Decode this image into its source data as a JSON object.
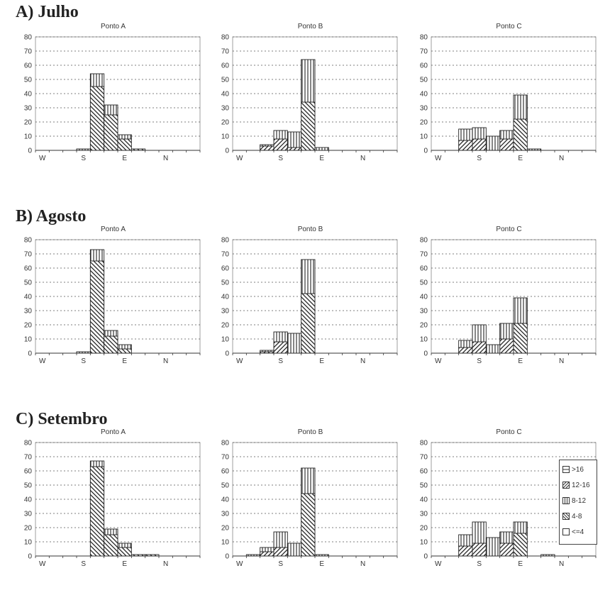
{
  "sections": [
    {
      "label": "A) Julho"
    },
    {
      "label": "B) Agosto"
    },
    {
      "label": "C) Setembro"
    }
  ],
  "legend": [
    ">16",
    "12-16",
    "8-12",
    "4-8",
    "<=4"
  ],
  "chart_data": [
    {
      "type": "bar",
      "stacked": true,
      "section": "A) Julho",
      "title": "Ponto A",
      "categories": [
        "1",
        "2",
        "3",
        "4",
        "5",
        "6",
        "7",
        "8",
        "9",
        "10",
        "11",
        "12"
      ],
      "x_ticks": [
        "W",
        "S",
        "E",
        "N"
      ],
      "ylim": [
        0,
        80
      ],
      "yticks": [
        0,
        10,
        20,
        30,
        40,
        50,
        60,
        70,
        80
      ],
      "series": [
        {
          "name": "4-8",
          "values": [
            0,
            0,
            0,
            0,
            45,
            25,
            8,
            1,
            0,
            0,
            0,
            0
          ]
        },
        {
          "name": "8-12",
          "values": [
            0,
            0,
            0,
            1,
            9,
            7,
            3,
            0,
            0,
            0,
            0,
            0
          ]
        }
      ]
    },
    {
      "type": "bar",
      "stacked": true,
      "section": "A) Julho",
      "title": "Ponto B",
      "categories": [
        "1",
        "2",
        "3",
        "4",
        "5",
        "6",
        "7",
        "8",
        "9",
        "10",
        "11",
        "12"
      ],
      "x_ticks": [
        "W",
        "S",
        "E",
        "N"
      ],
      "ylim": [
        0,
        80
      ],
      "yticks": [
        0,
        10,
        20,
        30,
        40,
        50,
        60,
        70,
        80
      ],
      "series": [
        {
          "name": "12-16",
          "values": [
            0,
            0,
            3,
            8,
            2,
            0,
            0,
            0,
            0,
            0,
            0,
            0
          ]
        },
        {
          "name": "4-8",
          "values": [
            0,
            0,
            0,
            0,
            0,
            34,
            0,
            0,
            0,
            0,
            0,
            0
          ]
        },
        {
          "name": "8-12",
          "values": [
            0,
            0,
            1,
            6,
            11,
            30,
            2,
            0,
            0,
            0,
            0,
            0
          ]
        }
      ]
    },
    {
      "type": "bar",
      "stacked": true,
      "section": "A) Julho",
      "title": "Ponto C",
      "categories": [
        "1",
        "2",
        "3",
        "4",
        "5",
        "6",
        "7",
        "8",
        "9",
        "10",
        "11",
        "12"
      ],
      "x_ticks": [
        "W",
        "S",
        "E",
        "N"
      ],
      "ylim": [
        0,
        80
      ],
      "yticks": [
        0,
        10,
        20,
        30,
        40,
        50,
        60,
        70,
        80
      ],
      "series": [
        {
          "name": "12-16",
          "values": [
            0,
            0,
            7,
            8,
            0,
            8,
            0,
            0,
            0,
            0,
            0,
            0
          ]
        },
        {
          "name": "4-8",
          "values": [
            0,
            0,
            0,
            0,
            0,
            0,
            22,
            0,
            0,
            0,
            0,
            0
          ]
        },
        {
          "name": "8-12",
          "values": [
            0,
            0,
            8,
            8,
            10,
            6,
            17,
            1,
            0,
            0,
            0,
            0
          ]
        }
      ]
    },
    {
      "type": "bar",
      "stacked": true,
      "section": "B) Agosto",
      "title": "Ponto A",
      "categories": [
        "1",
        "2",
        "3",
        "4",
        "5",
        "6",
        "7",
        "8",
        "9",
        "10",
        "11",
        "12"
      ],
      "x_ticks": [
        "W",
        "S",
        "E",
        "N"
      ],
      "ylim": [
        0,
        80
      ],
      "yticks": [
        0,
        10,
        20,
        30,
        40,
        50,
        60,
        70,
        80
      ],
      "series": [
        {
          "name": "4-8",
          "values": [
            0,
            0,
            0,
            0,
            65,
            12,
            3,
            0,
            0,
            0,
            0,
            0
          ]
        },
        {
          "name": "8-12",
          "values": [
            0,
            0,
            0,
            1,
            8,
            4,
            3,
            0,
            0,
            0,
            0,
            0
          ]
        }
      ]
    },
    {
      "type": "bar",
      "stacked": true,
      "section": "B) Agosto",
      "title": "Ponto B",
      "categories": [
        "1",
        "2",
        "3",
        "4",
        "5",
        "6",
        "7",
        "8",
        "9",
        "10",
        "11",
        "12"
      ],
      "x_ticks": [
        "W",
        "S",
        "E",
        "N"
      ],
      "ylim": [
        0,
        80
      ],
      "yticks": [
        0,
        10,
        20,
        30,
        40,
        50,
        60,
        70,
        80
      ],
      "series": [
        {
          "name": "12-16",
          "values": [
            0,
            0,
            1,
            8,
            0,
            0,
            0,
            0,
            0,
            0,
            0,
            0
          ]
        },
        {
          "name": "4-8",
          "values": [
            0,
            0,
            0,
            0,
            0,
            42,
            0,
            0,
            0,
            0,
            0,
            0
          ]
        },
        {
          "name": "8-12",
          "values": [
            0,
            0,
            1,
            7,
            14,
            24,
            0,
            0,
            0,
            0,
            0,
            0
          ]
        }
      ]
    },
    {
      "type": "bar",
      "stacked": true,
      "section": "B) Agosto",
      "title": "Ponto C",
      "categories": [
        "1",
        "2",
        "3",
        "4",
        "5",
        "6",
        "7",
        "8",
        "9",
        "10",
        "11",
        "12"
      ],
      "x_ticks": [
        "W",
        "S",
        "E",
        "N"
      ],
      "ylim": [
        0,
        80
      ],
      "yticks": [
        0,
        10,
        20,
        30,
        40,
        50,
        60,
        70,
        80
      ],
      "series": [
        {
          "name": "12-16",
          "values": [
            0,
            0,
            4,
            8,
            0,
            10,
            0,
            0,
            0,
            0,
            0,
            0
          ]
        },
        {
          "name": "4-8",
          "values": [
            0,
            0,
            0,
            0,
            0,
            0,
            21,
            0,
            0,
            0,
            0,
            0
          ]
        },
        {
          "name": "8-12",
          "values": [
            0,
            0,
            5,
            12,
            6,
            11,
            18,
            0,
            0,
            0,
            0,
            0
          ]
        }
      ]
    },
    {
      "type": "bar",
      "stacked": true,
      "section": "C) Setembro",
      "title": "Ponto A",
      "categories": [
        "1",
        "2",
        "3",
        "4",
        "5",
        "6",
        "7",
        "8",
        "9",
        "10",
        "11",
        "12"
      ],
      "x_ticks": [
        "W",
        "S",
        "E",
        "N"
      ],
      "ylim": [
        0,
        80
      ],
      "yticks": [
        0,
        10,
        20,
        30,
        40,
        50,
        60,
        70,
        80
      ],
      "series": [
        {
          "name": "4-8",
          "values": [
            0,
            0,
            0,
            0,
            63,
            15,
            6,
            1,
            1,
            0,
            0,
            0
          ]
        },
        {
          "name": "8-12",
          "values": [
            0,
            0,
            0,
            0,
            4,
            4,
            3,
            0,
            0,
            0,
            0,
            0
          ]
        }
      ]
    },
    {
      "type": "bar",
      "stacked": true,
      "section": "C) Setembro",
      "title": "Ponto B",
      "categories": [
        "1",
        "2",
        "3",
        "4",
        "5",
        "6",
        "7",
        "8",
        "9",
        "10",
        "11",
        "12"
      ],
      "x_ticks": [
        "W",
        "S",
        "E",
        "N"
      ],
      "ylim": [
        0,
        80
      ],
      "yticks": [
        0,
        10,
        20,
        30,
        40,
        50,
        60,
        70,
        80
      ],
      "series": [
        {
          "name": "12-16",
          "values": [
            0,
            0,
            3,
            6,
            0,
            0,
            0,
            0,
            0,
            0,
            0,
            0
          ]
        },
        {
          "name": "4-8",
          "values": [
            0,
            0,
            0,
            0,
            0,
            44,
            0,
            0,
            0,
            0,
            0,
            0
          ]
        },
        {
          "name": "8-12",
          "values": [
            0,
            1,
            3,
            11,
            9,
            18,
            1,
            0,
            0,
            0,
            0,
            0
          ]
        }
      ]
    },
    {
      "type": "bar",
      "stacked": true,
      "section": "C) Setembro",
      "title": "Ponto C",
      "categories": [
        "1",
        "2",
        "3",
        "4",
        "5",
        "6",
        "7",
        "8",
        "9",
        "10",
        "11",
        "12"
      ],
      "x_ticks": [
        "W",
        "S",
        "E",
        "N"
      ],
      "ylim": [
        0,
        80
      ],
      "yticks": [
        0,
        10,
        20,
        30,
        40,
        50,
        60,
        70,
        80
      ],
      "series": [
        {
          "name": "12-16",
          "values": [
            0,
            0,
            7,
            9,
            0,
            9,
            0,
            0,
            0,
            0,
            0,
            0
          ]
        },
        {
          "name": "4-8",
          "values": [
            0,
            0,
            0,
            0,
            0,
            0,
            16,
            0,
            0,
            0,
            0,
            0
          ]
        },
        {
          "name": "8-12",
          "values": [
            0,
            0,
            8,
            15,
            13,
            8,
            8,
            0,
            1,
            0,
            0,
            0
          ]
        }
      ]
    }
  ]
}
